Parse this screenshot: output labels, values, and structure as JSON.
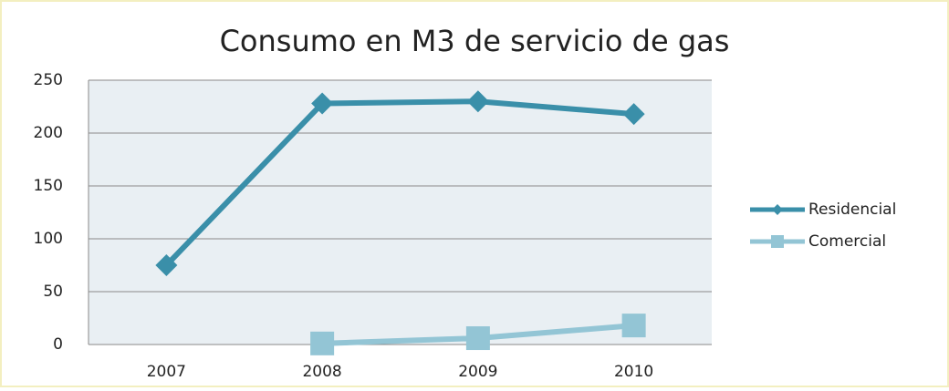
{
  "chart_data": {
    "type": "line",
    "title": "Consumo en M3 de servicio de gas",
    "categories": [
      "2007",
      "2008",
      "2009",
      "2010"
    ],
    "series": [
      {
        "name": "Residencial",
        "color": "#3a8fa9",
        "values": [
          75,
          228,
          230,
          218
        ]
      },
      {
        "name": "Comercial",
        "color": "#93c5d5",
        "values": [
          null,
          1,
          6,
          18
        ]
      }
    ],
    "ylim": [
      0,
      250
    ],
    "yticks": [
      0,
      50,
      100,
      150,
      200,
      250
    ],
    "grid": true,
    "legend": "right"
  }
}
